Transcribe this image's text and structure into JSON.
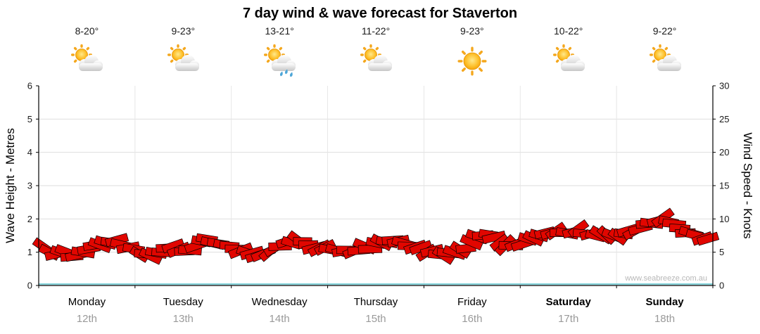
{
  "title": "7 day wind & wave forecast for Staverton",
  "watermark": "www.seabreeze.com.au",
  "days": [
    {
      "name": "Monday",
      "date": "12th",
      "temp": "8-20°",
      "icon": "partly-cloudy",
      "bold": false
    },
    {
      "name": "Tuesday",
      "date": "13th",
      "temp": "9-23°",
      "icon": "partly-cloudy",
      "bold": false
    },
    {
      "name": "Wednesday",
      "date": "14th",
      "temp": "13-21°",
      "icon": "rain",
      "bold": false
    },
    {
      "name": "Thursday",
      "date": "15th",
      "temp": "11-22°",
      "icon": "partly-cloudy",
      "bold": false
    },
    {
      "name": "Friday",
      "date": "16th",
      "temp": "9-23°",
      "icon": "sunny",
      "bold": false
    },
    {
      "name": "Saturday",
      "date": "17th",
      "temp": "10-22°",
      "icon": "partly-cloudy",
      "bold": true
    },
    {
      "name": "Sunday",
      "date": "18th",
      "temp": "9-22°",
      "icon": "partly-cloudy",
      "bold": true
    }
  ],
  "chart_data": {
    "type": "line",
    "title": "7 day wind & wave forecast for Staverton",
    "ylabel_left": "Wave Height - Metres",
    "ylabel_right": "Wind Speed - Knots",
    "ylim_left": [
      0,
      6
    ],
    "ylim_right": [
      0,
      30
    ],
    "y_left_ticks": [
      0,
      1,
      2,
      3,
      4,
      5,
      6
    ],
    "y_right_ticks": [
      0,
      5,
      10,
      15,
      20,
      25,
      30
    ],
    "x_categories": [
      "Monday 12th",
      "Tuesday 13th",
      "Wednesday 14th",
      "Thursday 15th",
      "Friday 16th",
      "Saturday 17th",
      "Sunday 18th"
    ],
    "series": [
      {
        "name": "Wave height (m) — red wind-direction arrow band (right axis ≈ value × 5 knots)",
        "samples_per_day": 8,
        "values": [
          1.2,
          0.95,
          1.0,
          0.85,
          1.1,
          1.25,
          1.35,
          1.25,
          1.0,
          0.9,
          1.05,
          1.15,
          0.95,
          1.3,
          1.35,
          1.2,
          1.1,
          0.95,
          0.9,
          1.0,
          1.3,
          1.35,
          1.2,
          1.1,
          1.05,
          1.0,
          1.1,
          1.15,
          1.3,
          1.4,
          1.2,
          1.1,
          1.0,
          0.9,
          1.0,
          1.2,
          1.5,
          1.55,
          1.2,
          1.25,
          1.35,
          1.55,
          1.6,
          1.5,
          1.65,
          1.55,
          1.45,
          1.5,
          1.6,
          1.75,
          1.9,
          2.0,
          1.8,
          1.55,
          1.45,
          1.3
        ]
      }
    ],
    "band_color": "#e10600",
    "band_outline": "#000000",
    "baseline_color": "#7fd0d8",
    "grid": true,
    "legend": false
  }
}
